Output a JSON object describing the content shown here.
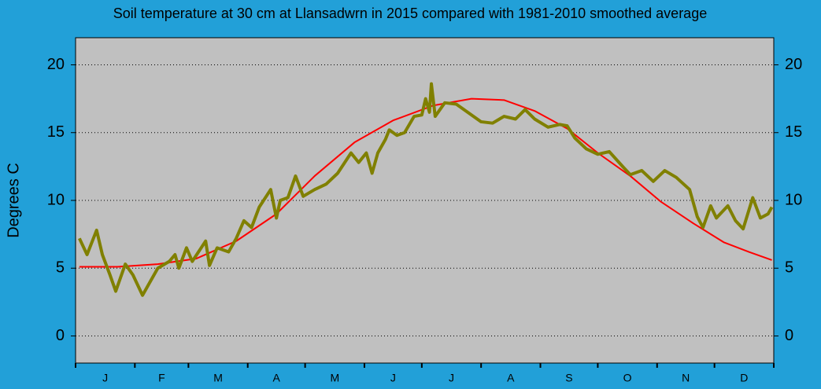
{
  "chart_data": {
    "type": "line",
    "title": "Soil temperature at 30 cm at Llansadwrn in 2015 compared with 1981-2010 smoothed average",
    "y_label": "Degrees  C",
    "xlim": [
      1,
      366
    ],
    "month_ticks": [
      1,
      32,
      60,
      91,
      121,
      152,
      182,
      213,
      244,
      274,
      305,
      335,
      366
    ],
    "months": [
      "J",
      "F",
      "M",
      "A",
      "M",
      "J",
      "J",
      "A",
      "S",
      "O",
      "N",
      "D"
    ],
    "ylim": [
      -2,
      22
    ],
    "yticks": [
      0,
      5,
      10,
      15,
      20
    ],
    "grid": true,
    "series": [
      {
        "name": "1981-2010 smoothed average",
        "color": "#ff0000",
        "x": [
          3,
          23,
          44,
          64,
          85,
          106,
          126,
          147,
          167,
          188,
          208,
          225,
          241,
          258,
          274,
          291,
          307,
          324,
          340,
          353,
          365
        ],
        "values": [
          5.1,
          5.1,
          5.3,
          5.7,
          7.0,
          9.0,
          11.8,
          14.3,
          15.9,
          17.0,
          17.5,
          17.4,
          16.6,
          15.3,
          13.5,
          11.8,
          9.9,
          8.3,
          6.9,
          6.2,
          5.6
        ]
      },
      {
        "name": "2015",
        "color": "#808000",
        "x": [
          3,
          7,
          12,
          15,
          19,
          22,
          27,
          31,
          36,
          40,
          44,
          50,
          53,
          55,
          59,
          62,
          69,
          71,
          75,
          81,
          85,
          89,
          93,
          97,
          103,
          106,
          108,
          112,
          116,
          120,
          126,
          132,
          138,
          145,
          149,
          153,
          156,
          159,
          163,
          165,
          169,
          173,
          178,
          182,
          184,
          186,
          187,
          189,
          194,
          200,
          206,
          213,
          219,
          225,
          231,
          236,
          241,
          248,
          254,
          258,
          262,
          268,
          274,
          280,
          287,
          291,
          297,
          303,
          309,
          315,
          322,
          326,
          329,
          333,
          336,
          342,
          346,
          350,
          355,
          359,
          363,
          365
        ],
        "values": [
          7.2,
          6.0,
          7.8,
          6.0,
          4.5,
          3.3,
          5.3,
          4.5,
          3.0,
          4.0,
          5.0,
          5.5,
          6.0,
          5.0,
          6.5,
          5.5,
          7.0,
          5.2,
          6.5,
          6.2,
          7.2,
          8.5,
          8.0,
          9.5,
          10.8,
          8.7,
          10.0,
          10.2,
          11.8,
          10.3,
          10.8,
          11.2,
          12.0,
          13.5,
          12.8,
          13.5,
          12.0,
          13.5,
          14.5,
          15.2,
          14.8,
          15.0,
          16.2,
          16.3,
          17.5,
          16.5,
          18.6,
          16.2,
          17.2,
          17.1,
          16.5,
          15.8,
          15.7,
          16.2,
          16.0,
          16.7,
          16.0,
          15.4,
          15.6,
          15.5,
          14.6,
          13.8,
          13.4,
          13.6,
          12.5,
          11.9,
          12.2,
          11.4,
          12.2,
          11.7,
          10.8,
          8.8,
          8.0,
          9.6,
          8.7,
          9.6,
          8.5,
          7.9,
          10.2,
          8.7,
          9.0,
          9.5
        ]
      }
    ]
  }
}
